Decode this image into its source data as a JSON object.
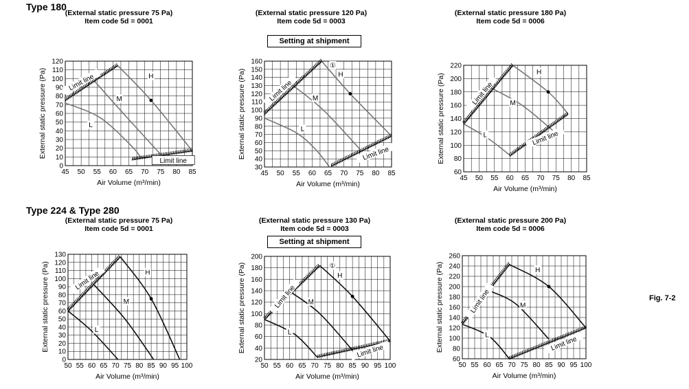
{
  "colors": {
    "curve_top": "#777777",
    "curve_bottom": "#111111",
    "grid": "#000000"
  },
  "headings": {
    "top": "Type 180",
    "bottom": "Type 224 & Type 280"
  },
  "figure_label": "Fig. 7-2",
  "chart_data": [
    {
      "type": "line",
      "title": "(External static pressure 75 Pa)",
      "subtitle": "Item code 5d = 0001",
      "shipment": "",
      "xlabel": "Air Volume (m³/min)",
      "ylabel": "External static pressure (Pa)",
      "xlim": [
        45,
        85
      ],
      "ylim": [
        0,
        120
      ],
      "xticks": [
        "45",
        "50",
        "55",
        "60",
        "65",
        "70",
        "75",
        "80",
        "85"
      ],
      "yticks": [
        "0",
        "10",
        "20",
        "30",
        "40",
        "50",
        "60",
        "70",
        "80",
        "90",
        "100",
        "110",
        "120"
      ],
      "series": [
        {
          "name": "H",
          "x": [
            61.5,
            72,
            85
          ],
          "y": [
            115,
            75,
            17
          ]
        },
        {
          "name": "M",
          "x": [
            54,
            64,
            75
          ],
          "y": [
            98,
            57,
            13
          ]
        },
        {
          "name": "L",
          "x": [
            45,
            56,
            66,
            69
          ],
          "y": [
            72,
            55,
            22,
            8
          ]
        }
      ],
      "limit_lines": [
        {
          "x": [
            45,
            61.5
          ],
          "y": [
            75,
            115
          ]
        },
        {
          "x": [
            66,
            85
          ],
          "y": [
            7,
            17
          ]
        }
      ],
      "marker": {
        "x": 72,
        "y": 75
      },
      "annotations": [
        {
          "text": "Limit line",
          "x": 50,
          "y": 96,
          "rotate": -28
        },
        {
          "text": "H",
          "x": 72,
          "y": 103
        },
        {
          "text": "M",
          "x": 62,
          "y": 77
        },
        {
          "text": "L",
          "x": 53,
          "y": 47
        },
        {
          "text": "Limit line",
          "x": 79,
          "y": 6,
          "boxed": true
        }
      ]
    },
    {
      "type": "line",
      "title": "(External static pressure 120 Pa)",
      "subtitle": "Item code 5d = 0003",
      "shipment": "Setting at shipment",
      "xlabel": "Air Volume (m³/min)",
      "ylabel": "External static pressure (Pa)",
      "xlim": [
        45,
        85
      ],
      "ylim": [
        30,
        160
      ],
      "xticks": [
        "45",
        "50",
        "55",
        "60",
        "65",
        "70",
        "75",
        "80",
        "85"
      ],
      "yticks": [
        "30",
        "40",
        "50",
        "60",
        "70",
        "80",
        "90",
        "100",
        "110",
        "120",
        "130",
        "140",
        "150",
        "160"
      ],
      "series": [
        {
          "name": "H",
          "x": [
            63,
            72,
            85
          ],
          "y": [
            160,
            120,
            68
          ]
        },
        {
          "name": "M",
          "x": [
            54,
            63.5,
            75
          ],
          "y": [
            130,
            100,
            52
          ]
        },
        {
          "name": "L",
          "x": [
            45,
            55,
            61,
            65.5
          ],
          "y": [
            90,
            72,
            52,
            30
          ]
        }
      ],
      "limit_lines": [
        {
          "x": [
            45,
            63
          ],
          "y": [
            95,
            160
          ]
        },
        {
          "x": [
            66,
            85
          ],
          "y": [
            31,
            68
          ]
        }
      ],
      "marker": {
        "x": 72,
        "y": 120
      },
      "annotations": [
        {
          "text": "Limit line",
          "x": 50,
          "y": 124,
          "rotate": -42
        },
        {
          "text": "①",
          "x": 66.5,
          "y": 155
        },
        {
          "text": "H",
          "x": 69,
          "y": 144
        },
        {
          "text": "M",
          "x": 61,
          "y": 115
        },
        {
          "text": "L",
          "x": 57,
          "y": 77
        },
        {
          "text": "Limit line",
          "x": 80,
          "y": 47,
          "rotate": -20
        }
      ]
    },
    {
      "type": "line",
      "title": "(External static pressure 180 Pa)",
      "subtitle": "Item code 5d = 0006",
      "shipment": "",
      "xlabel": "Air Volume (m³/min)",
      "ylabel": "External static pressure (Pa)",
      "xlim": [
        45,
        85
      ],
      "ylim": [
        60,
        220
      ],
      "xticks": [
        "45",
        "50",
        "55",
        "60",
        "65",
        "70",
        "75",
        "80",
        "85"
      ],
      "yticks": [
        "60",
        "80",
        "100",
        "120",
        "140",
        "160",
        "180",
        "200",
        "220"
      ],
      "series": [
        {
          "name": "H",
          "x": [
            61,
            72.5,
            79
          ],
          "y": [
            220,
            180,
            147
          ]
        },
        {
          "name": "M",
          "x": [
            53.5,
            64,
            75
          ],
          "y": [
            187,
            160,
            118
          ]
        },
        {
          "name": "L",
          "x": [
            45,
            53,
            60
          ],
          "y": [
            132,
            110,
            85
          ]
        }
      ],
      "limit_lines": [
        {
          "x": [
            45,
            61
          ],
          "y": [
            132,
            220
          ]
        },
        {
          "x": [
            60,
            79
          ],
          "y": [
            84,
            147
          ]
        }
      ],
      "marker": {
        "x": 72.5,
        "y": 180
      },
      "annotations": [
        {
          "text": "Limit line",
          "x": 51,
          "y": 178,
          "rotate": -50
        },
        {
          "text": "H",
          "x": 69.5,
          "y": 210
        },
        {
          "text": "M",
          "x": 61,
          "y": 164
        },
        {
          "text": "L",
          "x": 52,
          "y": 116
        },
        {
          "text": "Limit line",
          "x": 71.5,
          "y": 111,
          "rotate": -22
        }
      ]
    },
    {
      "type": "line",
      "title": "(External static pressure 75 Pa)",
      "subtitle": "Item code 5d = 0001",
      "shipment": "",
      "xlabel": "Air Volume (m³/min)",
      "ylabel": "External static pressure (Pa)",
      "xlim": [
        50,
        100
      ],
      "ylim": [
        0,
        130
      ],
      "xticks": [
        "50",
        "55",
        "60",
        "65",
        "70",
        "75",
        "80",
        "85",
        "90",
        "95",
        "100"
      ],
      "yticks": [
        "0",
        "10",
        "20",
        "30",
        "40",
        "50",
        "60",
        "70",
        "80",
        "90",
        "100",
        "110",
        "120",
        "130"
      ],
      "series": [
        {
          "name": "H",
          "x": [
            72,
            85,
            97
          ],
          "y": [
            127,
            75,
            0
          ]
        },
        {
          "name": "M",
          "x": [
            61,
            74,
            86
          ],
          "y": [
            92,
            50,
            0
          ]
        },
        {
          "name": "L",
          "x": [
            50,
            60,
            71
          ],
          "y": [
            60,
            35,
            0
          ]
        }
      ],
      "limit_lines": [
        {
          "x": [
            50,
            72
          ],
          "y": [
            60,
            127
          ]
        }
      ],
      "marker": {
        "x": 85,
        "y": 75
      },
      "annotations": [
        {
          "text": "Limit line",
          "x": 58,
          "y": 98,
          "rotate": -35
        },
        {
          "text": "H",
          "x": 83.5,
          "y": 108
        },
        {
          "text": "M",
          "x": 74.5,
          "y": 72
        },
        {
          "text": "L",
          "x": 62,
          "y": 37
        }
      ]
    },
    {
      "type": "line",
      "title": "(External static pressure 130 Pa)",
      "subtitle": "Item code 5d = 0003",
      "shipment": "Setting at shipment",
      "xlabel": "Air Volume (m³/min)",
      "ylabel": "External static pressure (Pa)",
      "xlim": [
        50,
        100
      ],
      "ylim": [
        20,
        200
      ],
      "xticks": [
        "50",
        "55",
        "60",
        "65",
        "70",
        "75",
        "80",
        "85",
        "90",
        "95",
        "100"
      ],
      "yticks": [
        "20",
        "40",
        "60",
        "80",
        "100",
        "120",
        "140",
        "160",
        "180",
        "200"
      ],
      "series": [
        {
          "name": "H",
          "x": [
            72,
            85,
            100
          ],
          "y": [
            184,
            130,
            52
          ]
        },
        {
          "name": "M",
          "x": [
            61,
            72,
            85
          ],
          "y": [
            136,
            100,
            36
          ]
        },
        {
          "name": "L",
          "x": [
            50,
            62,
            71
          ],
          "y": [
            90,
            64,
            24
          ]
        }
      ],
      "limit_lines": [
        {
          "x": [
            50,
            72
          ],
          "y": [
            90,
            184
          ]
        },
        {
          "x": [
            71,
            100
          ],
          "y": [
            24,
            52
          ]
        }
      ],
      "marker": {
        "x": 85,
        "y": 130
      },
      "annotations": [
        {
          "text": "Limit line",
          "x": 58,
          "y": 130,
          "rotate": -50
        },
        {
          "text": "①",
          "x": 77,
          "y": 184
        },
        {
          "text": "H",
          "x": 80,
          "y": 167
        },
        {
          "text": "M",
          "x": 68.5,
          "y": 121
        },
        {
          "text": "L",
          "x": 60,
          "y": 68
        },
        {
          "text": "Limit line",
          "x": 92,
          "y": 35,
          "rotate": -18
        }
      ]
    },
    {
      "type": "line",
      "title": "(External static pressure 200 Pa)",
      "subtitle": "Item code 5d = 0006",
      "shipment": "",
      "xlabel": "Air Volume (m³/min)",
      "ylabel": "External static pressure (Pa)",
      "xlim": [
        50,
        100
      ],
      "ylim": [
        60,
        260
      ],
      "xticks": [
        "50",
        "55",
        "60",
        "65",
        "70",
        "75",
        "80",
        "85",
        "90",
        "95",
        "100"
      ],
      "yticks": [
        "60",
        "80",
        "100",
        "120",
        "140",
        "160",
        "180",
        "200",
        "220",
        "240",
        "260"
      ],
      "series": [
        {
          "name": "H",
          "x": [
            69,
            85,
            100
          ],
          "y": [
            243,
            200,
            120
          ]
        },
        {
          "name": "M",
          "x": [
            62,
            72,
            85
          ],
          "y": [
            190,
            165,
            98
          ]
        },
        {
          "name": "L",
          "x": [
            50,
            61,
            69
          ],
          "y": [
            127,
            103,
            60
          ]
        }
      ],
      "limit_lines": [
        {
          "x": [
            50,
            69
          ],
          "y": [
            127,
            243
          ]
        },
        {
          "x": [
            69,
            100
          ],
          "y": [
            60,
            120
          ]
        }
      ],
      "marker": {
        "x": 85,
        "y": 200
      },
      "annotations": [
        {
          "text": "Limit line",
          "x": 57,
          "y": 172,
          "rotate": -55
        },
        {
          "text": "H",
          "x": 80.5,
          "y": 233
        },
        {
          "text": "M",
          "x": 74.5,
          "y": 164
        },
        {
          "text": "L",
          "x": 60,
          "y": 107
        },
        {
          "text": "Limit line",
          "x": 91,
          "y": 90,
          "rotate": -22
        }
      ]
    }
  ]
}
